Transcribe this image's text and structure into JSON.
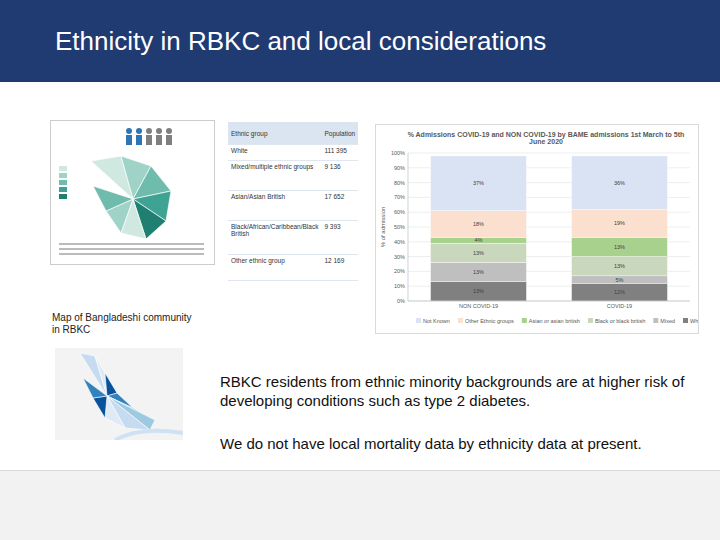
{
  "title": "Ethnicity in RBKC and local considerations",
  "table": {
    "header": [
      "Ethnic group",
      "Population"
    ],
    "rows": [
      [
        "White",
        "111 395"
      ],
      [
        "Mixed/multiple ethnic groups",
        "9 136"
      ],
      [
        "Asian/Asian British",
        "17 652"
      ],
      [
        "Black/African/Caribbean/Black British",
        "9 393"
      ],
      [
        "Other ethnic group",
        "12 169"
      ]
    ]
  },
  "chart_data": {
    "type": "bar",
    "stacked": true,
    "title": "% Admissions COVID-19 and NON COVID-19 by BAME admissions 1st March to 5th June 2020",
    "y_label": "% of admission",
    "categories": [
      "NON COVID-19",
      "COVID-19"
    ],
    "series": [
      {
        "name": "White",
        "color": "#808080",
        "values": [
          13,
          12
        ],
        "value_labels": [
          "13%",
          "12%"
        ]
      },
      {
        "name": "Mixed",
        "color": "#bfbfbf",
        "values": [
          13,
          5
        ],
        "value_labels": [
          "13%",
          "5%"
        ]
      },
      {
        "name": "Black or black british",
        "color": "#c9d7bd",
        "values": [
          13,
          13
        ],
        "value_labels": [
          "13%",
          "13%"
        ]
      },
      {
        "name": "Asian or asian british",
        "color": "#a9d18e",
        "values": [
          4,
          13
        ],
        "value_labels": [
          "4%",
          "13%"
        ]
      },
      {
        "name": "Other Ethnic groups",
        "color": "#fbe0cf",
        "values": [
          18,
          19
        ],
        "value_labels": [
          "18%",
          "19%"
        ]
      },
      {
        "name": "Not Known",
        "color": "#dae3f3",
        "values": [
          37,
          36
        ],
        "value_labels": [
          "37%",
          "36%"
        ]
      }
    ],
    "ylim": [
      0,
      100
    ],
    "yticks": [
      {
        "value": 0,
        "label": "0%"
      },
      {
        "value": 10,
        "label": "10%"
      },
      {
        "value": 20,
        "label": "20%"
      },
      {
        "value": 30,
        "label": "30%"
      },
      {
        "value": 40,
        "label": "40%"
      },
      {
        "value": 50,
        "label": "50%"
      },
      {
        "value": 60,
        "label": "60%"
      },
      {
        "value": 70,
        "label": "70%"
      },
      {
        "value": 80,
        "label": "80%"
      },
      {
        "value": 90,
        "label": "90%"
      },
      {
        "value": 100,
        "label": "100%"
      }
    ],
    "grid": true,
    "legend": "bottom",
    "data_labels": true
  },
  "map_caption": "Map of Bangladeshi community in RBKC",
  "body": [
    "RBKC residents from ethnic minority backgrounds are at higher risk of developing conditions such as type 2 diabetes.",
    "We do not have local mortality data by ethnicity data at present."
  ]
}
